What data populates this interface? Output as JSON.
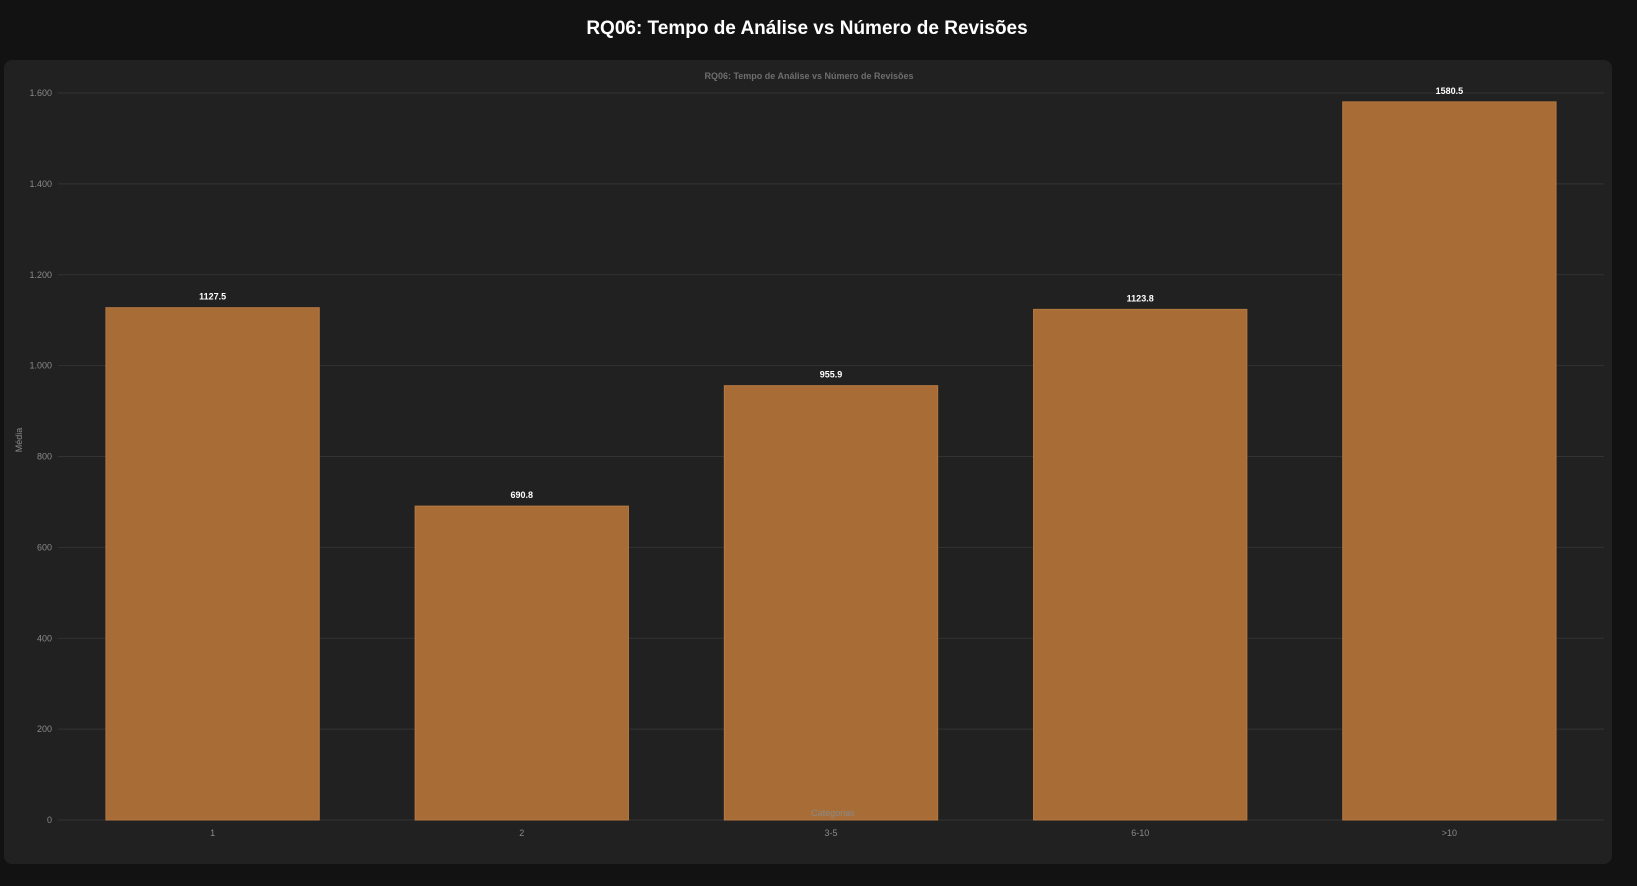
{
  "page": {
    "title": "RQ06: Tempo de Análise vs Número de Revisões"
  },
  "colors": {
    "page_background": "#121212",
    "card_background": "#212121",
    "bar": "#a86d36",
    "bar_border": "#b57841",
    "grid": "#333333",
    "tick_text": "#8a8a8a",
    "data_label": "#ffffff"
  },
  "chart_data": {
    "type": "bar",
    "title": "RQ06: Tempo de Análise vs Número de Revisões",
    "xlabel": "Categorias",
    "ylabel": "Média",
    "categories": [
      "1",
      "2",
      "3-5",
      "6-10",
      ">10"
    ],
    "values": [
      1127.5,
      690.8,
      955.9,
      1123.8,
      1580.5
    ],
    "data_labels": [
      "1127.5",
      "690.8",
      "955.9",
      "1123.8",
      "1580.5"
    ],
    "ylim": [
      0,
      1600
    ],
    "yticks": [
      0,
      200,
      400,
      600,
      800,
      1000,
      1200,
      1400,
      1600
    ],
    "ytick_labels": [
      "0",
      "200",
      "400",
      "600",
      "800",
      "1.000",
      "1.200",
      "1.400",
      "1.600"
    ],
    "grid": true,
    "legend": "none"
  }
}
